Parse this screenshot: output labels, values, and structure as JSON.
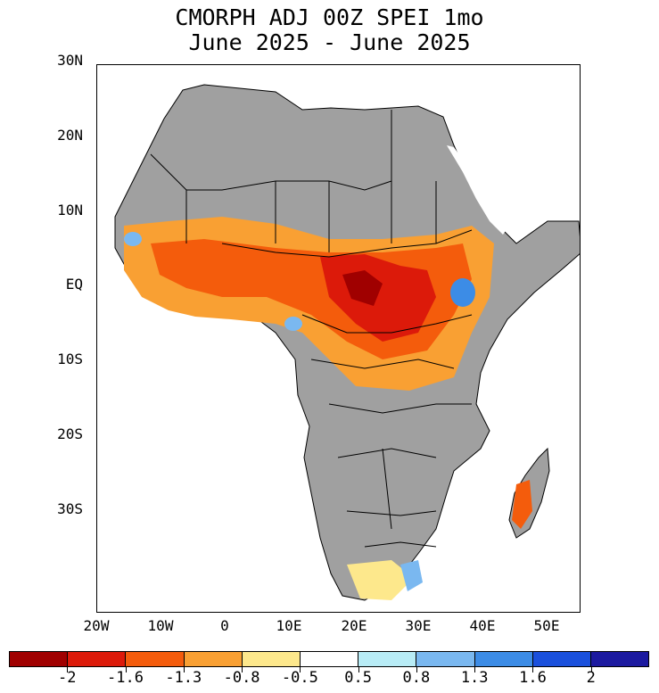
{
  "title_line1": "CMORPH ADJ 00Z SPEI 1mo",
  "title_line2": "June 2025 - June 2025",
  "lat_labels": [
    "30N",
    "20N",
    "10N",
    "EQ",
    "10S",
    "20S",
    "30S"
  ],
  "lon_labels": [
    "20W",
    "10W",
    "0",
    "10E",
    "20E",
    "30E",
    "40E",
    "50E"
  ],
  "legend": {
    "colors": [
      "#a00000",
      "#dc1a0a",
      "#f45c0c",
      "#f9a033",
      "#fde88c",
      "#ffffff",
      "#b8ecf6",
      "#7ab8f0",
      "#3c8ce6",
      "#1a50dc",
      "#1c1aa0"
    ],
    "labels": [
      "-2",
      "-1.6",
      "-1.3",
      "-0.8",
      "-0.5",
      "0.5",
      "0.8",
      "1.3",
      "1.6",
      "2"
    ]
  },
  "map_colors": {
    "land": "#a0a0a0",
    "ocean": "#ffffff",
    "border": "#000000"
  }
}
